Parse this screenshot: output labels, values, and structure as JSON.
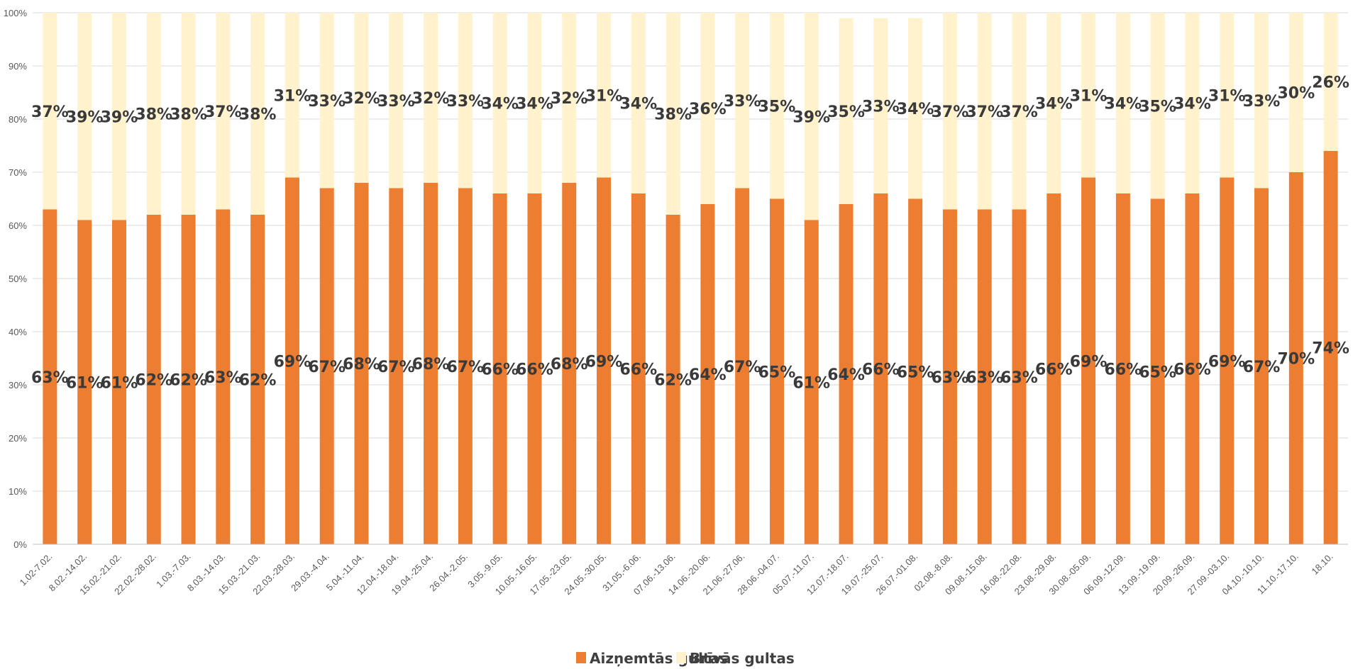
{
  "chart_data": {
    "type": "bar",
    "stacked": true,
    "normalized": true,
    "categories": [
      "1.02-7.02.",
      "8.02.-14.02.",
      "15.02.-21.02.",
      "22.02.-28.02.",
      "1.03.-7.03.",
      "8.03.-14.03.",
      "15.03.-21.03.",
      "22.03.-28.03.",
      "29.03.-4.04.",
      "5.04.-11.04.",
      "12.04.-18.04.",
      "19.04.-25.04.",
      "26.04.-2.05.",
      "3.05.-9.05.",
      "10.05.-16.05.",
      "17.05.-23.05.",
      "24.05.-30.05.",
      "31.05.-6.06.",
      "07.06.-13.06.",
      "14.06.-20.06.",
      "21.06.-27.06.",
      "28.06.-04.07.",
      "05.07.-11.07.",
      "12.07.-18.07.",
      "19.07.-25.07.",
      "26.07.-01.08.",
      "02.08.-8.08.",
      "09.08.-15.08.",
      "16.08.-22.08.",
      "23.08.-29.08.",
      "30.08.-05.09.",
      "06.09.-12.09.",
      "13.09.-19.09.",
      "20.09.-26.09.",
      "27.09.-03.10.",
      "04.10.-10.10.",
      "11.10.-17.10.",
      "18.10."
    ],
    "series": [
      {
        "name": "Aizņemtās gultas",
        "color": "#ED7D31",
        "values": [
          63,
          61,
          61,
          62,
          62,
          63,
          62,
          69,
          67,
          68,
          67,
          68,
          67,
          66,
          66,
          68,
          69,
          66,
          62,
          64,
          67,
          65,
          61,
          64,
          66,
          65,
          63,
          63,
          63,
          66,
          69,
          66,
          65,
          66,
          69,
          67,
          70,
          74
        ],
        "labels": [
          "63%",
          "61%",
          "61%",
          "62%",
          "62%",
          "63%",
          "62%",
          "69%",
          "67%",
          "68%",
          "67%",
          "68%",
          "67%",
          "66%",
          "66%",
          "68%",
          "69%",
          "66%",
          "62%",
          "64%",
          "67%",
          "65%",
          "61%",
          "64%",
          "66%",
          "65%",
          "63%",
          "63%",
          "63%",
          "66%",
          "69%",
          "66%",
          "65%",
          "66%",
          "69%",
          "67%",
          "70%",
          "74%"
        ]
      },
      {
        "name": "Brīvās gultas",
        "color": "#FFF2CC",
        "values": [
          37,
          39,
          39,
          38,
          38,
          37,
          38,
          31,
          33,
          32,
          33,
          32,
          33,
          34,
          34,
          32,
          31,
          34,
          38,
          36,
          33,
          35,
          39,
          35,
          33,
          34,
          37,
          37,
          37,
          34,
          31,
          34,
          35,
          34,
          31,
          33,
          30,
          26
        ],
        "labels": [
          "37%",
          "39%",
          "39%",
          "38%",
          "38%",
          "37%",
          "38%",
          "31%",
          "33%",
          "32%",
          "33%",
          "32%",
          "33%",
          "34%",
          "34%",
          "32%",
          "31%",
          "34%",
          "38%",
          "36%",
          "33%",
          "35%",
          "39%",
          "35%",
          "33%",
          "34%",
          "37%",
          "37%",
          "37%",
          "34%",
          "31%",
          "34%",
          "35%",
          "34%",
          "31%",
          "33%",
          "30%",
          "26%"
        ]
      }
    ],
    "yticks": [
      "0%",
      "10%",
      "20%",
      "30%",
      "40%",
      "50%",
      "60%",
      "70%",
      "80%",
      "90%",
      "100%"
    ],
    "ylim": [
      0,
      100
    ],
    "grid": true,
    "legend_position": "bottom",
    "title": "",
    "xlabel": "",
    "ylabel": ""
  }
}
